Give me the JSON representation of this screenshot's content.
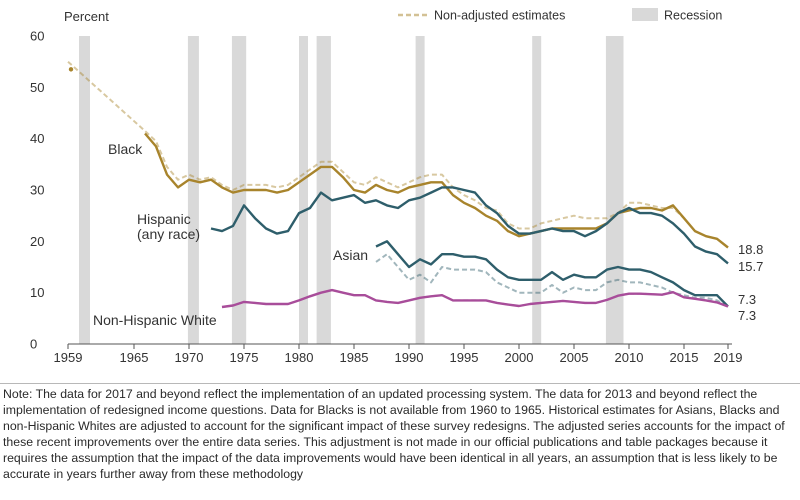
{
  "chart_data": {
    "type": "line",
    "ylabel": "Percent",
    "ylim": [
      0,
      60
    ],
    "yticks": [
      0,
      10,
      20,
      30,
      40,
      50,
      60
    ],
    "xlim": [
      1959,
      2019
    ],
    "xticks": [
      1959,
      1965,
      1970,
      1975,
      1980,
      1985,
      1990,
      1995,
      2000,
      2005,
      2010,
      2015,
      2019
    ],
    "grid": false,
    "legend": {
      "placement": "top-right",
      "dashed_label": "Non-adjusted estimates",
      "recession_label": "Recession"
    },
    "recessions": [
      [
        1960,
        1961
      ],
      [
        1969.9,
        1970.9
      ],
      [
        1973.9,
        1975.2
      ],
      [
        1980,
        1980.6
      ],
      [
        1981.6,
        1982.9
      ],
      [
        1990.6,
        1991.2
      ],
      [
        2001.2,
        2001.9
      ],
      [
        2007.9,
        2009.5
      ]
    ],
    "series": [
      {
        "name": "Black",
        "color": "#a8842c",
        "end_label": "18.8",
        "x": [
          1959,
          1966,
          1967,
          1968,
          1969,
          1970,
          1971,
          1972,
          1973,
          1974,
          1975,
          1976,
          1977,
          1978,
          1979,
          1980,
          1981,
          1982,
          1983,
          1984,
          1985,
          1986,
          1987,
          1988,
          1989,
          1990,
          1991,
          1992,
          1993,
          1994,
          1995,
          1996,
          1997,
          1998,
          1999,
          2000,
          2001,
          2002,
          2003,
          2004,
          2005,
          2006,
          2007,
          2008,
          2009,
          2010,
          2011,
          2012,
          2013,
          2014,
          2015,
          2016,
          2017,
          2018,
          2019
        ],
        "values": [
          null,
          41.0,
          38.5,
          33.0,
          30.5,
          32.0,
          31.5,
          32.0,
          30.5,
          29.5,
          30.0,
          30.0,
          30.0,
          29.5,
          30.0,
          31.5,
          33.0,
          34.5,
          34.5,
          32.5,
          30.0,
          29.5,
          31.0,
          30.0,
          29.5,
          30.5,
          31.0,
          31.5,
          31.5,
          29.0,
          27.5,
          26.5,
          25.0,
          24.0,
          22.0,
          21.0,
          21.5,
          22.0,
          22.5,
          22.5,
          22.5,
          22.5,
          22.5,
          23.5,
          25.5,
          26.0,
          26.5,
          26.5,
          26.0,
          27.0,
          24.5,
          22.0,
          21.0,
          20.5,
          18.8
        ],
        "non_adjusted": [
          55.0,
          41.5,
          39.5,
          34.5,
          32.0,
          33.0,
          32.0,
          32.5,
          31.0,
          30.0,
          31.0,
          31.0,
          31.0,
          30.5,
          31.0,
          32.5,
          34.0,
          35.5,
          35.5,
          33.5,
          31.5,
          31.0,
          32.5,
          31.5,
          30.5,
          31.5,
          32.5,
          33.0,
          33.0,
          30.5,
          29.0,
          28.0,
          26.5,
          26.0,
          23.5,
          22.5,
          22.5,
          23.5,
          24.0,
          24.5,
          25.0,
          24.5,
          24.5,
          24.5,
          25.5,
          27.5,
          27.5,
          27.0,
          26.5,
          26.5,
          24.5,
          22.0,
          21.0,
          20.5,
          18.8
        ]
      },
      {
        "name": "Hispanic",
        "name_line2": "(any race)",
        "color": "#2e5e6b",
        "end_label": "15.7",
        "x": [
          1972,
          1973,
          1974,
          1975,
          1976,
          1977,
          1978,
          1979,
          1980,
          1981,
          1982,
          1983,
          1984,
          1985,
          1986,
          1987,
          1988,
          1989,
          1990,
          1991,
          1992,
          1993,
          1994,
          1995,
          1996,
          1997,
          1998,
          1999,
          2000,
          2001,
          2002,
          2003,
          2004,
          2005,
          2006,
          2007,
          2008,
          2009,
          2010,
          2011,
          2012,
          2013,
          2014,
          2015,
          2016,
          2017,
          2018,
          2019
        ],
        "values": [
          22.5,
          22.0,
          23.0,
          27.0,
          24.5,
          22.5,
          21.5,
          22.0,
          25.5,
          26.5,
          29.5,
          28.0,
          28.5,
          29.0,
          27.5,
          28.0,
          27.0,
          26.5,
          28.0,
          28.5,
          29.5,
          30.5,
          30.5,
          30.0,
          29.5,
          27.0,
          25.5,
          23.0,
          21.5,
          21.5,
          22.0,
          22.5,
          22.0,
          22.0,
          21.0,
          22.0,
          23.5,
          25.5,
          26.5,
          25.5,
          25.5,
          25.0,
          23.5,
          21.5,
          19.0,
          18.0,
          17.5,
          15.7
        ],
        "non_adjusted": []
      },
      {
        "name": "Asian",
        "color": "#2e5e6b",
        "end_label": "7.3",
        "x": [
          1987,
          1988,
          1989,
          1990,
          1991,
          1992,
          1993,
          1994,
          1995,
          1996,
          1997,
          1998,
          1999,
          2000,
          2001,
          2002,
          2003,
          2004,
          2005,
          2006,
          2007,
          2008,
          2009,
          2010,
          2011,
          2012,
          2013,
          2014,
          2015,
          2016,
          2017,
          2018,
          2019
        ],
        "values": [
          19.0,
          20.0,
          17.5,
          15.0,
          16.5,
          15.5,
          17.5,
          17.5,
          17.0,
          17.0,
          16.5,
          14.5,
          13.0,
          12.5,
          12.5,
          12.5,
          14.0,
          12.5,
          13.5,
          13.0,
          13.0,
          14.5,
          15.0,
          14.5,
          14.5,
          14.0,
          13.0,
          12.0,
          10.5,
          9.5,
          9.5,
          9.5,
          7.3
        ],
        "non_adjusted": [
          16.0,
          17.5,
          15.0,
          12.5,
          13.5,
          12.0,
          15.0,
          14.5,
          14.5,
          14.5,
          14.0,
          12.0,
          11.0,
          10.0,
          10.0,
          10.0,
          11.5,
          10.0,
          11.0,
          10.5,
          10.5,
          12.0,
          12.5,
          12.0,
          12.0,
          11.5,
          11.0,
          10.0,
          9.5,
          9.0,
          9.0,
          8.5,
          7.3
        ]
      },
      {
        "name": "Non-Hispanic White",
        "color": "#a84d9a",
        "end_label": "7.3",
        "x": [
          1973,
          1974,
          1975,
          1976,
          1977,
          1978,
          1979,
          1980,
          1981,
          1982,
          1983,
          1984,
          1985,
          1986,
          1987,
          1988,
          1989,
          1990,
          1991,
          1992,
          1993,
          1994,
          1995,
          1996,
          1997,
          1998,
          1999,
          2000,
          2001,
          2002,
          2003,
          2004,
          2005,
          2006,
          2007,
          2008,
          2009,
          2010,
          2011,
          2012,
          2013,
          2014,
          2015,
          2016,
          2017,
          2018,
          2019
        ],
        "values": [
          7.2,
          7.5,
          8.2,
          8.0,
          7.8,
          7.8,
          7.8,
          8.5,
          9.3,
          10.0,
          10.5,
          10.0,
          9.5,
          9.5,
          8.5,
          8.2,
          8.0,
          8.5,
          9.0,
          9.3,
          9.5,
          8.5,
          8.5,
          8.5,
          8.5,
          8.0,
          7.7,
          7.4,
          7.8,
          8.0,
          8.2,
          8.4,
          8.2,
          8.0,
          8.0,
          8.6,
          9.4,
          9.8,
          9.8,
          9.7,
          9.6,
          10.1,
          9.1,
          8.8,
          8.5,
          8.1,
          7.3
        ],
        "non_adjusted": [
          7.2,
          7.5,
          8.2,
          8.0,
          7.8,
          7.8,
          7.8,
          8.5,
          9.3,
          10.0,
          10.5,
          10.0,
          9.5,
          9.5,
          8.5,
          8.2,
          8.0,
          8.5,
          9.0,
          9.3,
          9.5,
          8.5,
          8.5,
          8.5,
          8.5,
          8.0,
          7.7,
          7.4,
          7.8,
          8.0,
          8.2,
          8.4,
          8.2,
          8.0,
          8.0,
          8.6,
          9.4,
          9.8,
          9.8,
          9.7,
          9.6,
          10.1,
          9.1,
          8.8,
          8.5,
          8.1,
          7.3
        ]
      }
    ]
  },
  "note": "Note: The data for 2017 and beyond reflect the implementation of an updated processing system. The data for 2013 and beyond reflect the implementation of redesigned income questions. Data for Blacks is not available from 1960 to 1965. Historical estimates for Asians, Blacks and non-Hispanic Whites are adjusted to account for the significant impact of these survey redesigns. The adjusted series accounts for the impact of these recent improvements over the entire data series. This adjustment is not made in our official publications and table packages because it requires the assumption that the impact of the data improvements would have been identical in all years, an assumption that is less likely to be accurate in years further away from these methodology"
}
